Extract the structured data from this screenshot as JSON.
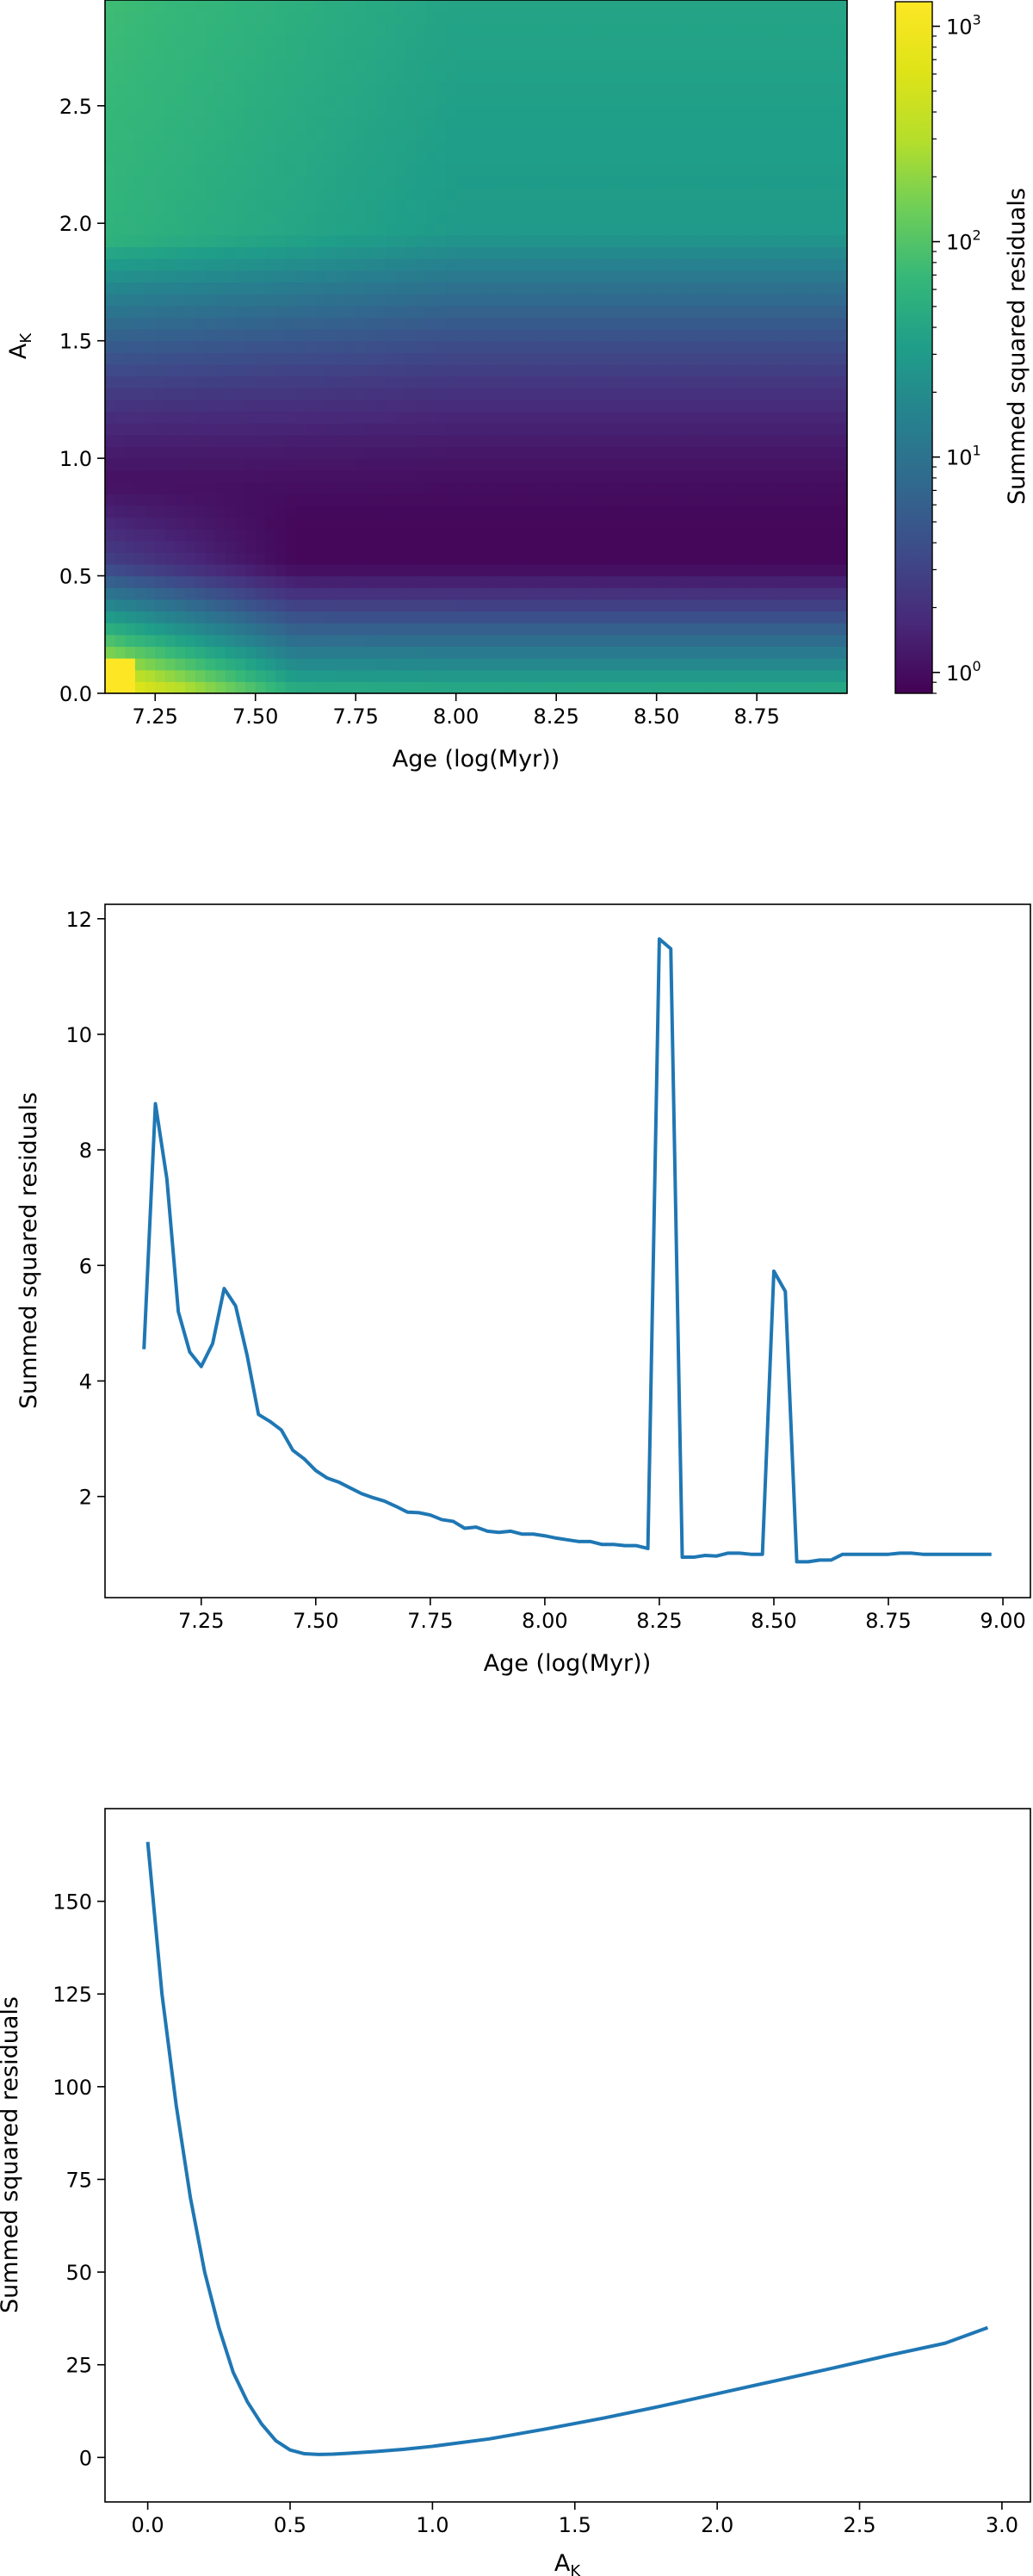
{
  "chart_data": [
    {
      "type": "heatmap",
      "xlabel": "Age (log(Myr))",
      "ylabel": "A",
      "ylabel_sub": "K",
      "xlim": [
        7.125,
        8.975
      ],
      "ylim": [
        0.0,
        2.95
      ],
      "xticks": [
        7.25,
        7.5,
        7.75,
        8.0,
        8.25,
        8.5,
        8.75
      ],
      "xtick_labels": [
        "7.25",
        "7.50",
        "7.75",
        "8.00",
        "8.25",
        "8.50",
        "8.75"
      ],
      "yticks": [
        0.0,
        0.5,
        1.0,
        1.5,
        2.0,
        2.5
      ],
      "ytick_labels": [
        "0.0",
        "0.5",
        "1.0",
        "1.5",
        "2.0",
        "2.5"
      ],
      "colorscale": "viridis",
      "color_scale_type": "log",
      "colorbar": {
        "label": "Summed squared residuals",
        "range": [
          0.8,
          1300
        ],
        "ticks": [
          1,
          10,
          100,
          1000
        ],
        "tick_labels": [
          "10^0",
          "10^1",
          "10^2",
          "10^3"
        ]
      },
      "model": {
        "x_step": 0.025,
        "y_step": 0.05,
        "description_values": {
          "min_residual_ak": 0.62,
          "spike_columns_ages": [
            8.25,
            8.275,
            8.5,
            8.525
          ],
          "max_value_region": "low age, low A_K"
        }
      }
    },
    {
      "type": "line",
      "xlabel": "Age (log(Myr))",
      "ylabel": "Summed squared residuals",
      "xlim": [
        7.04,
        9.06
      ],
      "ylim": [
        0.25,
        12.25
      ],
      "xticks": [
        7.25,
        7.5,
        7.75,
        8.0,
        8.25,
        8.5,
        8.75,
        9.0
      ],
      "xtick_labels": [
        "7.25",
        "7.50",
        "7.75",
        "8.00",
        "8.25",
        "8.50",
        "8.75",
        "9.00"
      ],
      "yticks": [
        2,
        4,
        6,
        8,
        10,
        12
      ],
      "ytick_labels": [
        "2",
        "4",
        "6",
        "8",
        "10",
        "12"
      ],
      "color": "#1f77b4",
      "x": [
        7.125,
        7.15,
        7.175,
        7.2,
        7.225,
        7.25,
        7.275,
        7.3,
        7.325,
        7.35,
        7.375,
        7.4,
        7.425,
        7.45,
        7.475,
        7.5,
        7.525,
        7.55,
        7.575,
        7.6,
        7.625,
        7.65,
        7.675,
        7.7,
        7.725,
        7.75,
        7.775,
        7.8,
        7.825,
        7.85,
        7.875,
        7.9,
        7.925,
        7.95,
        7.975,
        8.0,
        8.025,
        8.05,
        8.075,
        8.1,
        8.125,
        8.15,
        8.175,
        8.2,
        8.225,
        8.25,
        8.275,
        8.3,
        8.325,
        8.35,
        8.375,
        8.4,
        8.425,
        8.45,
        8.475,
        8.5,
        8.525,
        8.55,
        8.575,
        8.6,
        8.625,
        8.65,
        8.675,
        8.7,
        8.725,
        8.75,
        8.775,
        8.8,
        8.825,
        8.85,
        8.875,
        8.9,
        8.925,
        8.95,
        8.975
      ],
      "y": [
        4.55,
        8.8,
        7.5,
        5.2,
        4.5,
        4.25,
        4.65,
        5.6,
        5.3,
        4.45,
        3.42,
        3.3,
        3.15,
        2.8,
        2.65,
        2.45,
        2.32,
        2.25,
        2.15,
        2.05,
        1.98,
        1.92,
        1.83,
        1.73,
        1.72,
        1.68,
        1.6,
        1.57,
        1.45,
        1.47,
        1.4,
        1.38,
        1.4,
        1.35,
        1.35,
        1.32,
        1.28,
        1.25,
        1.22,
        1.22,
        1.17,
        1.17,
        1.15,
        1.15,
        1.1,
        11.65,
        11.48,
        0.95,
        0.95,
        0.98,
        0.97,
        1.02,
        1.02,
        1.0,
        1.0,
        5.9,
        5.55,
        0.87,
        0.87,
        0.9,
        0.9,
        1.0,
        1.0,
        1.0,
        1.0,
        1.0,
        1.02,
        1.02,
        1.0,
        1.0,
        1.0,
        1.0,
        1.0,
        1.0,
        1.0
      ]
    },
    {
      "type": "line",
      "xlabel": "A",
      "xlabel_sub": "K",
      "ylabel": "Summed squared residuals",
      "xlim": [
        -0.15,
        3.1
      ],
      "ylim": [
        -12,
        175
      ],
      "xticks": [
        0.0,
        0.5,
        1.0,
        1.5,
        2.0,
        2.5,
        3.0
      ],
      "xtick_labels": [
        "0.0",
        "0.5",
        "1.0",
        "1.5",
        "2.0",
        "2.5",
        "3.0"
      ],
      "yticks": [
        0,
        25,
        50,
        75,
        100,
        125,
        150
      ],
      "ytick_labels": [
        "0",
        "25",
        "50",
        "75",
        "100",
        "125",
        "150"
      ],
      "color": "#1f77b4",
      "x": [
        0.0,
        0.05,
        0.1,
        0.15,
        0.2,
        0.25,
        0.3,
        0.35,
        0.4,
        0.45,
        0.5,
        0.55,
        0.6,
        0.65,
        0.7,
        0.8,
        0.9,
        1.0,
        1.2,
        1.4,
        1.6,
        1.8,
        2.0,
        2.2,
        2.4,
        2.6,
        2.8,
        2.95
      ],
      "y": [
        166,
        125,
        95,
        70,
        50,
        35,
        23,
        15,
        9,
        4.5,
        2,
        1,
        0.8,
        0.9,
        1.1,
        1.6,
        2.2,
        3.0,
        5.0,
        7.7,
        10.6,
        13.8,
        17.2,
        20.6,
        24.0,
        27.5,
        30.8,
        35
      ]
    }
  ]
}
